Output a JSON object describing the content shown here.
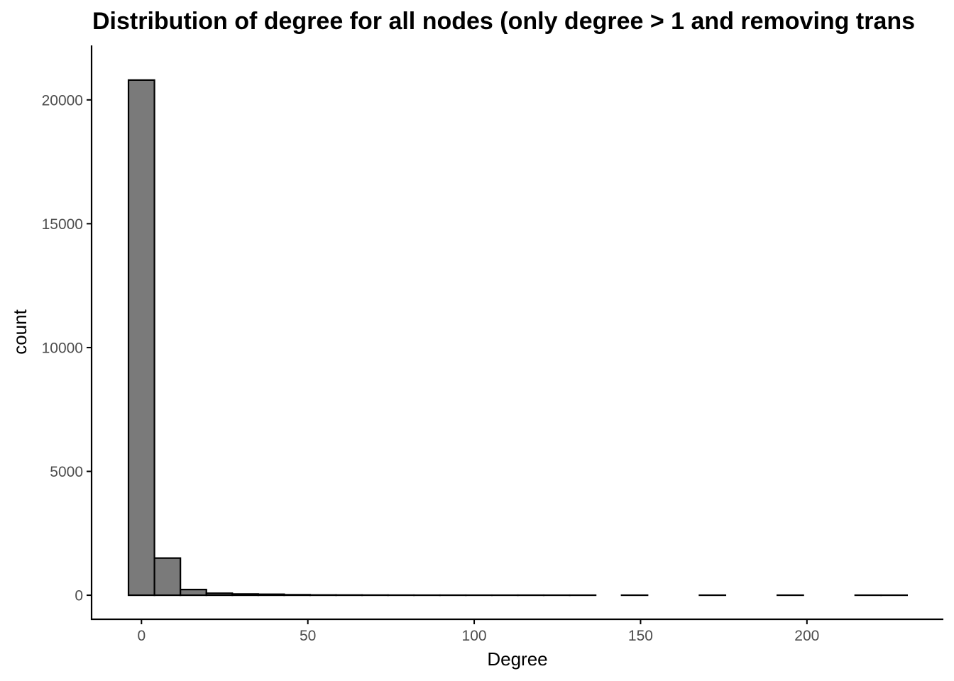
{
  "chart_data": {
    "type": "bar",
    "title": "Distribution of degree for all nodes (only degree > 1 and removing trans",
    "xlabel": "Degree",
    "ylabel": "count",
    "xlim": [
      -15,
      241
    ],
    "ylim": [
      -1000,
      22200
    ],
    "x_ticks": [
      0,
      50,
      100,
      150,
      200
    ],
    "x_tick_labels": [
      "0",
      "50",
      "100",
      "150",
      "200"
    ],
    "y_ticks": [
      0,
      5000,
      10000,
      15000,
      20000
    ],
    "y_tick_labels": [
      "0",
      "5000",
      "10000",
      "15000",
      "20000"
    ],
    "bin_width": 7.8,
    "bin_centers": [
      0.0,
      7.8,
      15.6,
      23.4,
      31.2,
      39.0,
      46.8,
      54.6,
      62.4,
      70.2,
      78.0,
      85.8,
      93.6,
      101.4,
      109.2,
      117.0,
      124.8,
      132.6,
      140.4,
      148.2,
      156.0,
      163.8,
      171.6,
      179.4,
      187.2,
      195.0,
      202.8,
      210.6,
      218.4,
      226.2
    ],
    "values": [
      20800,
      1500,
      230,
      80,
      50,
      40,
      20,
      10,
      8,
      5,
      3,
      2,
      2,
      1,
      1,
      2,
      1,
      1,
      0,
      1,
      0,
      0,
      1,
      0,
      0,
      1,
      0,
      0,
      1,
      1
    ],
    "fill_color": "#7a7a7a",
    "stroke_color": "#000000",
    "grid": false,
    "legend": "none"
  }
}
